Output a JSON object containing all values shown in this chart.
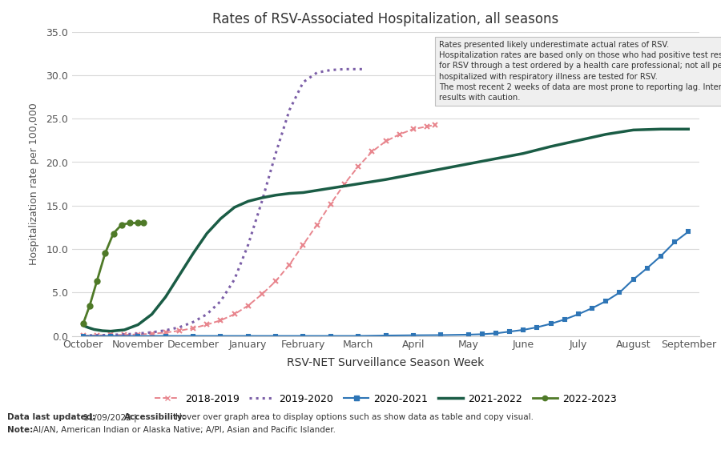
{
  "title": "Rates of RSV-Associated Hospitalization, all seasons",
  "xlabel": "RSV-NET Surveillance Season Week",
  "ylabel": "Hospitalization rate per 100,000",
  "ylim": [
    0,
    35.0
  ],
  "yticks": [
    0.0,
    5.0,
    10.0,
    15.0,
    20.0,
    25.0,
    30.0,
    35.0
  ],
  "x_months": [
    "October",
    "November",
    "December",
    "January",
    "February",
    "March",
    "April",
    "May",
    "June",
    "July",
    "August",
    "September"
  ],
  "background_color": "#ffffff",
  "grid_color": "#d9d9d9",
  "tooltip_text": "Rates presented likely underestimate actual rates of RSV.\nHospitalization rates are based only on those who had positive test results\nfor RSV through a test ordered by a health care professional; not all people\nhospitalized with respiratory illness are tested for RSV.\nThe most recent 2 weeks of data are most prone to reporting lag. Interpret\nresults with caution.",
  "seasons": {
    "2018-2019": {
      "color": "#e8868e",
      "linestyle": "--",
      "marker": "x",
      "markersize": 5,
      "linewidth": 1.4,
      "x": [
        0.0,
        0.25,
        0.5,
        0.75,
        1.0,
        1.25,
        1.5,
        1.75,
        2.0,
        2.25,
        2.5,
        2.75,
        3.0,
        3.25,
        3.5,
        3.75,
        4.0,
        4.25,
        4.5,
        4.75,
        5.0,
        5.25,
        5.5,
        5.75,
        6.0,
        6.25,
        6.4
      ],
      "y": [
        0.05,
        0.07,
        0.1,
        0.13,
        0.18,
        0.25,
        0.4,
        0.6,
        0.9,
        1.3,
        1.8,
        2.5,
        3.5,
        4.8,
        6.3,
        8.2,
        10.5,
        12.8,
        15.2,
        17.5,
        19.5,
        21.2,
        22.4,
        23.2,
        23.8,
        24.1,
        24.3
      ]
    },
    "2019-2020": {
      "color": "#7b5ea7",
      "linestyle": ":",
      "marker": "",
      "markersize": 0,
      "linewidth": 2.2,
      "x": [
        0.0,
        0.25,
        0.5,
        0.75,
        1.0,
        1.25,
        1.5,
        1.75,
        2.0,
        2.25,
        2.5,
        2.75,
        3.0,
        3.25,
        3.5,
        3.75,
        4.0,
        4.25,
        4.5,
        4.75,
        5.0,
        5.1
      ],
      "y": [
        0.05,
        0.08,
        0.12,
        0.18,
        0.28,
        0.42,
        0.65,
        1.0,
        1.6,
        2.5,
        4.0,
        6.5,
        10.5,
        15.5,
        21.0,
        26.0,
        29.2,
        30.3,
        30.6,
        30.7,
        30.7,
        30.7
      ]
    },
    "2020-2021": {
      "color": "#2e75b6",
      "linestyle": "-",
      "marker": "s",
      "markersize": 3.5,
      "linewidth": 1.5,
      "x": [
        0.0,
        0.5,
        1.0,
        1.5,
        2.0,
        2.5,
        3.0,
        3.5,
        4.0,
        4.5,
        5.0,
        5.5,
        6.0,
        6.5,
        7.0,
        7.25,
        7.5,
        7.75,
        8.0,
        8.25,
        8.5,
        8.75,
        9.0,
        9.25,
        9.5,
        9.75,
        10.0,
        10.25,
        10.5,
        10.75,
        11.0
      ],
      "y": [
        0.0,
        0.0,
        0.0,
        0.0,
        0.0,
        0.0,
        0.0,
        0.0,
        0.0,
        0.0,
        0.0,
        0.05,
        0.08,
        0.1,
        0.15,
        0.2,
        0.3,
        0.5,
        0.7,
        1.0,
        1.4,
        1.9,
        2.5,
        3.2,
        4.0,
        5.0,
        6.5,
        7.8,
        9.2,
        10.8,
        12.0
      ]
    },
    "2021-2022": {
      "color": "#1a5c45",
      "linestyle": "-",
      "marker": "",
      "markersize": 0,
      "linewidth": 2.5,
      "x": [
        0.0,
        0.1,
        0.2,
        0.35,
        0.5,
        0.75,
        1.0,
        1.25,
        1.5,
        1.75,
        2.0,
        2.25,
        2.5,
        2.75,
        3.0,
        3.25,
        3.5,
        3.75,
        4.0,
        4.5,
        5.0,
        5.5,
        6.0,
        6.5,
        7.0,
        7.5,
        8.0,
        8.5,
        9.0,
        9.5,
        10.0,
        10.5,
        11.0
      ],
      "y": [
        1.2,
        0.95,
        0.75,
        0.6,
        0.55,
        0.7,
        1.3,
        2.5,
        4.5,
        7.0,
        9.5,
        11.8,
        13.5,
        14.8,
        15.5,
        15.9,
        16.2,
        16.4,
        16.5,
        17.0,
        17.5,
        18.0,
        18.6,
        19.2,
        19.8,
        20.4,
        21.0,
        21.8,
        22.5,
        23.2,
        23.7,
        23.8,
        23.8
      ]
    },
    "2022-2023": {
      "color": "#4f7a28",
      "linestyle": "-",
      "marker": "o",
      "markersize": 4.5,
      "linewidth": 2.0,
      "x": [
        0.0,
        0.12,
        0.25,
        0.4,
        0.55,
        0.7,
        0.85,
        1.0,
        1.1
      ],
      "y": [
        1.4,
        3.5,
        6.3,
        9.5,
        11.8,
        12.8,
        13.0,
        13.0,
        13.0
      ]
    }
  }
}
